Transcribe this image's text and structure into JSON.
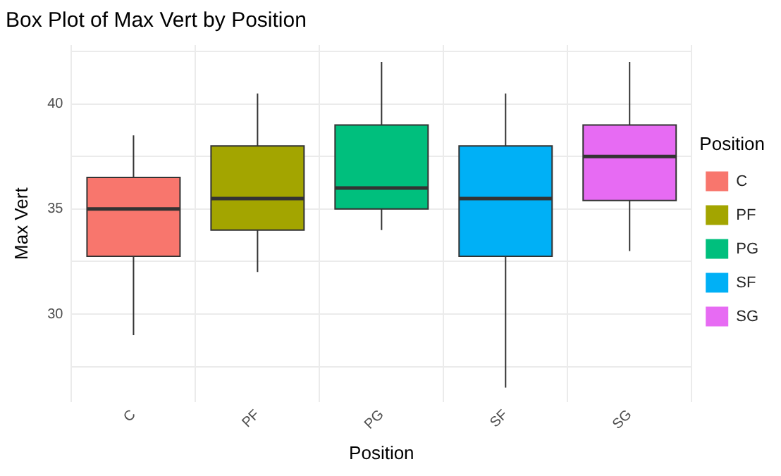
{
  "chart_data": {
    "type": "box",
    "title": "Box Plot of Max Vert by Position",
    "xlabel": "Position",
    "ylabel": "Max Vert",
    "legend_title": "Position",
    "categories": [
      "C",
      "PF",
      "PG",
      "SF",
      "SG"
    ],
    "series": [
      {
        "name": "C",
        "color": "#f8766d",
        "x": [
          "C"
        ],
        "boxes": [
          {
            "low": 29,
            "q1": 32.75,
            "median": 35,
            "q3": 36.5,
            "high": 38.5
          }
        ]
      },
      {
        "name": "PF",
        "color": "#a3a500",
        "x": [
          "PF"
        ],
        "boxes": [
          {
            "low": 32,
            "q1": 34,
            "median": 35.5,
            "q3": 38,
            "high": 40.5
          }
        ]
      },
      {
        "name": "PG",
        "color": "#00bf7d",
        "x": [
          "PG"
        ],
        "boxes": [
          {
            "low": 34,
            "q1": 35,
            "median": 36,
            "q3": 39,
            "high": 42
          }
        ]
      },
      {
        "name": "SF",
        "color": "#00b0f6",
        "x": [
          "SF"
        ],
        "boxes": [
          {
            "low": 26.5,
            "q1": 32.75,
            "median": 35.5,
            "q3": 38,
            "high": 40.5
          }
        ]
      },
      {
        "name": "SG",
        "color": "#e76bf3",
        "x": [
          "SG"
        ],
        "boxes": [
          {
            "low": 33,
            "q1": 35.4,
            "median": 37.5,
            "q3": 39,
            "high": 42
          }
        ]
      }
    ],
    "ylim": [
      25.8,
      42.8
    ],
    "yticks": [
      {
        "value": 27.5,
        "label": null
      },
      30,
      {
        "value": 32.5,
        "label": null
      },
      35,
      {
        "value": 37.5,
        "label": null
      },
      40,
      {
        "value": 42.5,
        "label": null
      }
    ],
    "grid": true,
    "legend": "right"
  }
}
